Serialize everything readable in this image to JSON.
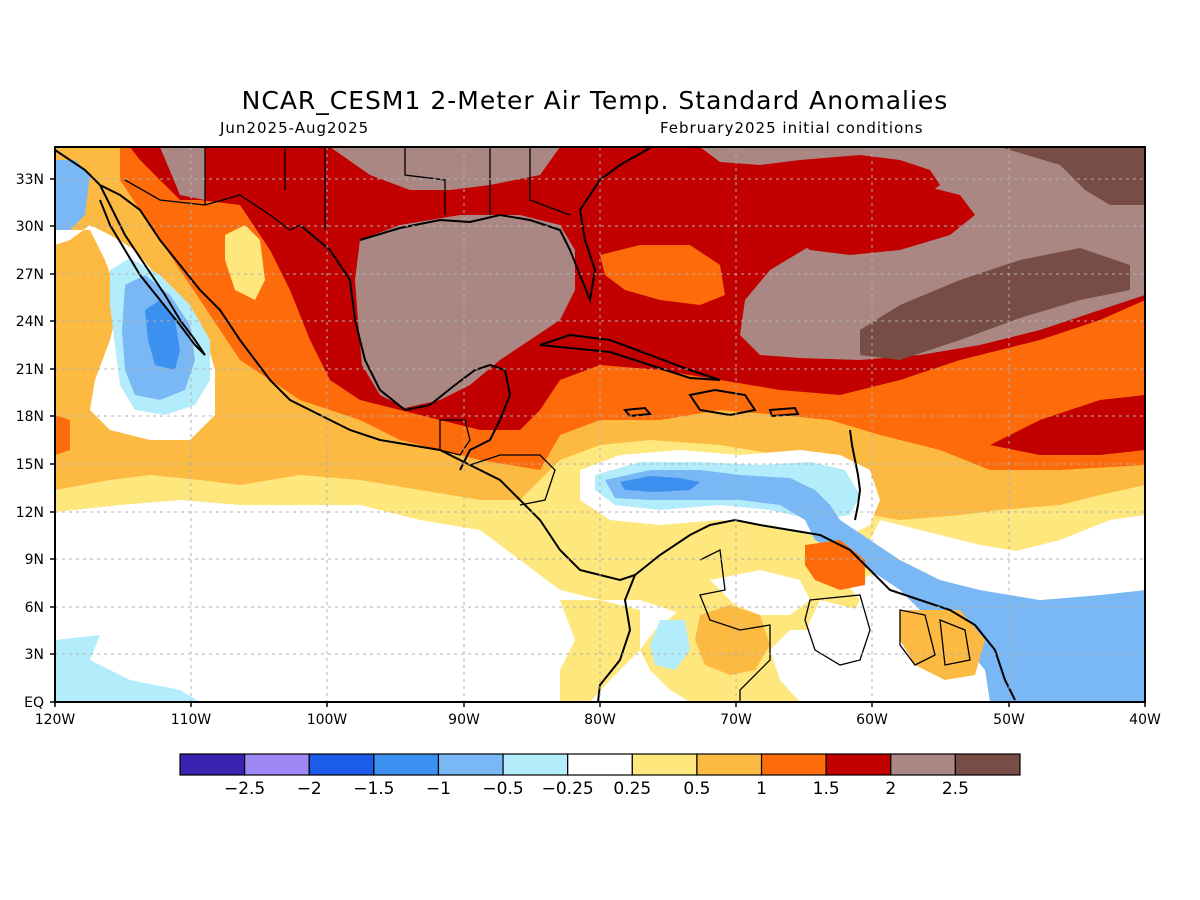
{
  "header": {
    "title": "NCAR_CESM1 2-Meter Air Temp. Standard Anomalies",
    "period": "Jun2025-Aug2025",
    "init": "February2025 initial conditions"
  },
  "map": {
    "lat_labels": [
      "33N",
      "30N",
      "27N",
      "24N",
      "21N",
      "18N",
      "15N",
      "12N",
      "9N",
      "6N",
      "3N",
      "EQ"
    ],
    "lon_labels": [
      "120W",
      "110W",
      "100W",
      "90W",
      "80W",
      "70W",
      "60W",
      "50W",
      "40W"
    ],
    "lon_range": [
      -120,
      -40
    ],
    "lat_range": [
      0,
      35
    ],
    "grid": true
  },
  "colorbar": {
    "colors": [
      "#3b22b0",
      "#9e88f5",
      "#1c5cea",
      "#3c91f0",
      "#7ab8f5",
      "#b3ecfb",
      "#ffffff",
      "#fee77d",
      "#fdba42",
      "#fd6b0a",
      "#c20000",
      "#aa8782",
      "#774d45"
    ],
    "labels": [
      "-2.5",
      "-2",
      "-1.5",
      "-1",
      "-0.5",
      "-0.25",
      "0.25",
      "0.5",
      "1",
      "1.5",
      "2",
      "2.5"
    ]
  }
}
